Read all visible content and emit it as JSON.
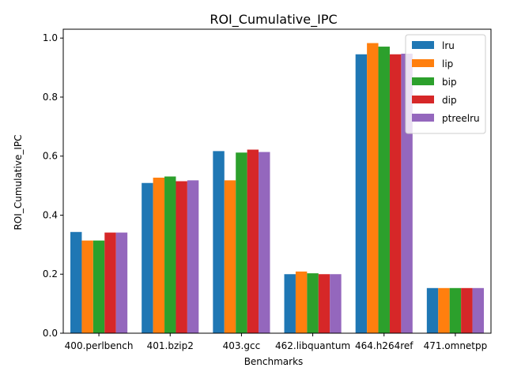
{
  "chart_data": {
    "type": "bar",
    "title": "ROI_Cumulative_IPC",
    "xlabel": "Benchmarks",
    "ylabel": "ROI_Cumulative_IPC",
    "categories": [
      "400.perlbench",
      "401.bzip2",
      "403.gcc",
      "462.libquantum",
      "464.h264ref",
      "471.omnetpp"
    ],
    "ylim": [
      0,
      1.03
    ],
    "yticks": [
      0.0,
      0.2,
      0.4,
      0.6,
      0.8,
      1.0
    ],
    "ytick_labels": [
      "0.0",
      "0.2",
      "0.4",
      "0.6",
      "0.8",
      "1.0"
    ],
    "legend_position": "top-right",
    "grid": false,
    "series": [
      {
        "name": "lru",
        "color": "#1f77b4",
        "values": [
          0.343,
          0.509,
          0.617,
          0.2,
          0.945,
          0.153
        ]
      },
      {
        "name": "lip",
        "color": "#ff7f0e",
        "values": [
          0.314,
          0.527,
          0.518,
          0.209,
          0.983,
          0.153
        ]
      },
      {
        "name": "bip",
        "color": "#2ca02c",
        "values": [
          0.314,
          0.531,
          0.612,
          0.203,
          0.971,
          0.153
        ]
      },
      {
        "name": "dip",
        "color": "#d62728",
        "values": [
          0.341,
          0.515,
          0.622,
          0.2,
          0.945,
          0.153
        ]
      },
      {
        "name": "ptreelru",
        "color": "#9467bd",
        "values": [
          0.341,
          0.518,
          0.614,
          0.2,
          0.947,
          0.153
        ]
      }
    ]
  }
}
